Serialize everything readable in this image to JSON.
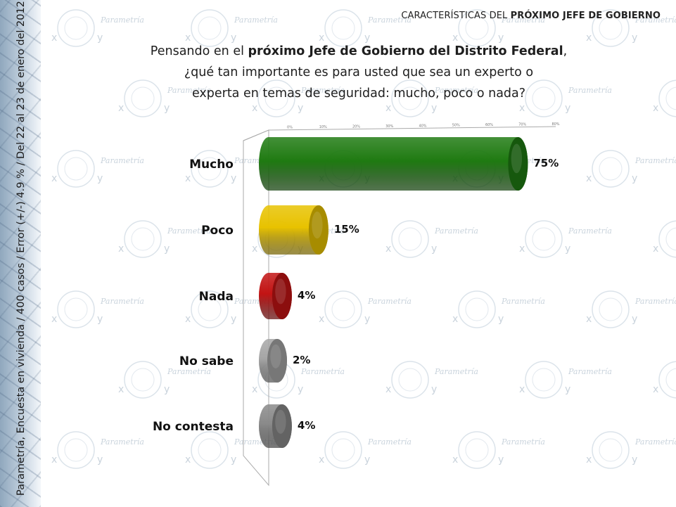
{
  "side_caption": "Parametría, Encuesta en vivienda / 400 casos / Error (+/-) 4.9 % / Del 22 al 23 de enero del 2012.",
  "header": {
    "prefix": "CARACTERÍSTICAS DEL ",
    "bold": "PRÓXIMO JEFE DE GOBIERNO"
  },
  "question": {
    "part1": "Pensando en el ",
    "bold": "próximo Jefe de Gobierno del Distrito Federal",
    "part2": ",",
    "line2": "¿qué tan importante es para usted que sea un experto o",
    "line3": "experta en temas de seguridad: mucho, poco o nada?"
  },
  "watermark_word": "Parametría",
  "chart_data": {
    "type": "bar",
    "orientation": "horizontal",
    "categories": [
      "Mucho",
      "Poco",
      "Nada",
      "No sabe",
      "No contesta"
    ],
    "values": [
      75,
      15,
      4,
      2,
      4
    ],
    "value_labels": [
      "75%",
      "15%",
      "4%",
      "2%",
      "4%"
    ],
    "colors": [
      "#1f7a12",
      "#e8c200",
      "#c21414",
      "#a6a6a6",
      "#8a8a8a"
    ],
    "ticks": [
      "0%",
      "10%",
      "20%",
      "30%",
      "40%",
      "50%",
      "60%",
      "70%",
      "80%"
    ],
    "xlim": [
      0,
      80
    ],
    "grid": false,
    "legend": "none"
  }
}
